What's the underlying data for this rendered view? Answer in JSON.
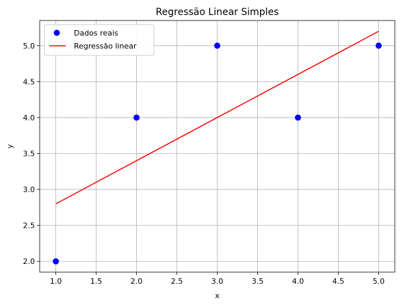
{
  "chart_data": {
    "type": "scatter",
    "title": "Regressão Linear Simples",
    "xlabel": "x",
    "ylabel": "y",
    "xlim": [
      0.8,
      5.2
    ],
    "ylim": [
      1.85,
      5.35
    ],
    "xticks": [
      1.0,
      1.5,
      2.0,
      2.5,
      3.0,
      3.5,
      4.0,
      4.5,
      5.0
    ],
    "yticks": [
      2.0,
      2.5,
      3.0,
      3.5,
      4.0,
      4.5,
      5.0
    ],
    "xtick_labels": [
      "1.0",
      "1.5",
      "2.0",
      "2.5",
      "3.0",
      "3.5",
      "4.0",
      "4.5",
      "5.0"
    ],
    "ytick_labels": [
      "2.0",
      "2.5",
      "3.0",
      "3.5",
      "4.0",
      "4.5",
      "5.0"
    ],
    "grid": true,
    "legend_position": "top-left",
    "series": [
      {
        "name": "Dados reais",
        "kind": "scatter",
        "color": "#0000ff",
        "x": [
          1,
          2,
          3,
          4,
          5
        ],
        "y": [
          2,
          4,
          5,
          4,
          5
        ]
      },
      {
        "name": "Regressão linear",
        "kind": "line",
        "color": "#ff0000",
        "x": [
          1,
          5
        ],
        "y": [
          2.8,
          5.2
        ]
      }
    ]
  }
}
